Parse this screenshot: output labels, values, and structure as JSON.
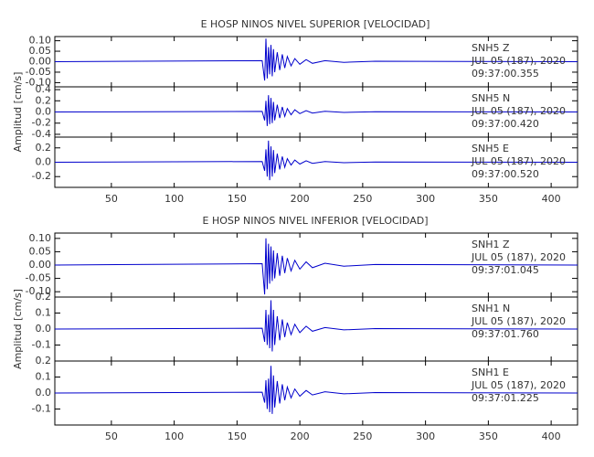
{
  "chart_data": [
    {
      "type": "line",
      "title": "E HOSP NINOS NIVEL SUPERIOR [VELOCIDAD]",
      "ylabel": "Amplitud [cm/s]",
      "color": "#0000cc",
      "xlim": [
        5,
        421
      ],
      "xticks": [
        50,
        100,
        150,
        200,
        250,
        300,
        350,
        400
      ],
      "x": [
        5,
        170,
        172,
        173,
        174,
        175,
        176,
        177,
        178,
        179,
        180,
        182,
        184,
        186,
        188,
        190,
        193,
        196,
        200,
        205,
        210,
        220,
        235,
        260,
        421
      ],
      "panels": [
        {
          "name": "SNH5   Z",
          "date": "JUL 05 (187), 2020",
          "time": "09:37:00.355",
          "ylim": [
            -0.12,
            0.12
          ],
          "yticks": [
            {
              "value": 0.1,
              "label": "0.10"
            },
            0.05,
            {
              "value": 0,
              "label": "0.00"
            },
            -0.05,
            {
              "value": -0.1,
              "label": "-0.10"
            }
          ],
          "values": [
            0,
            0.005,
            -0.09,
            0.11,
            -0.08,
            0.07,
            -0.06,
            0.08,
            -0.07,
            0.06,
            -0.05,
            0.045,
            -0.04,
            0.035,
            -0.03,
            0.025,
            -0.02,
            0.015,
            -0.012,
            0.01,
            -0.008,
            0.005,
            -0.003,
            0.002,
            0
          ]
        },
        {
          "name": "SNH5   N",
          "date": "JUL 05 (187), 2020",
          "time": "09:37:00.420",
          "ylim": [
            -0.45,
            0.45
          ],
          "yticks": [
            0.4,
            0.2,
            {
              "value": 0,
              "label": "0.0"
            },
            -0.2,
            -0.4
          ],
          "values": [
            0,
            0.01,
            -0.15,
            0.2,
            -0.25,
            0.3,
            -0.22,
            0.25,
            -0.2,
            0.18,
            -0.15,
            0.13,
            -0.11,
            0.09,
            -0.08,
            0.06,
            -0.05,
            0.04,
            -0.03,
            0.025,
            -0.02,
            0.012,
            -0.008,
            0.005,
            0
          ]
        },
        {
          "name": "SNH5   E",
          "date": "JUL 05 (187), 2020",
          "time": "09:37:00.520",
          "ylim": [
            -0.35,
            0.35
          ],
          "yticks": [
            0.2,
            {
              "value": 0,
              "label": "0.0"
            },
            -0.2
          ],
          "values": [
            0,
            0.01,
            -0.12,
            0.18,
            -0.2,
            0.3,
            -0.25,
            0.22,
            -0.2,
            0.17,
            -0.15,
            0.12,
            -0.1,
            0.08,
            -0.07,
            0.05,
            -0.04,
            0.03,
            -0.025,
            0.02,
            -0.015,
            0.01,
            -0.006,
            0.004,
            0
          ]
        }
      ]
    },
    {
      "type": "line",
      "title": "E HOSP NINOS NIVEL INFERIOR [VELOCIDAD]",
      "ylabel": "Amplitud [cm/s]",
      "color": "#0000cc",
      "xlim": [
        5,
        421
      ],
      "xticks": [
        50,
        100,
        150,
        200,
        250,
        300,
        350,
        400
      ],
      "x": [
        5,
        170,
        172,
        173,
        174,
        175,
        176,
        177,
        178,
        179,
        180,
        182,
        184,
        186,
        188,
        190,
        193,
        196,
        200,
        205,
        210,
        220,
        235,
        260,
        421
      ],
      "panels": [
        {
          "name": "SNH1   Z",
          "date": "JUL 05 (187), 2020",
          "time": "09:37:01.045",
          "ylim": [
            -0.12,
            0.12
          ],
          "yticks": [
            {
              "value": 0.1,
              "label": "0.10"
            },
            0.05,
            {
              "value": 0,
              "label": "0.00"
            },
            -0.05,
            {
              "value": -0.1,
              "label": "-0.10"
            }
          ],
          "values": [
            0,
            0.005,
            -0.11,
            0.1,
            -0.09,
            0.08,
            -0.07,
            0.07,
            -0.06,
            0.055,
            -0.05,
            0.045,
            -0.04,
            0.035,
            -0.03,
            0.026,
            -0.022,
            0.018,
            -0.015,
            0.012,
            -0.01,
            0.007,
            -0.004,
            0.002,
            0
          ]
        },
        {
          "name": "SNH1   N",
          "date": "JUL 05 (187), 2020",
          "time": "09:37:01.760",
          "ylim": [
            -0.2,
            0.2
          ],
          "yticks": [
            0.2,
            0.1,
            {
              "value": 0,
              "label": "0.0"
            },
            -0.1
          ],
          "values": [
            0,
            0.005,
            -0.08,
            0.12,
            -0.1,
            0.09,
            -0.12,
            0.18,
            -0.14,
            0.12,
            -0.1,
            0.08,
            -0.07,
            0.06,
            -0.05,
            0.04,
            -0.035,
            0.03,
            -0.022,
            0.018,
            -0.014,
            0.009,
            -0.005,
            0.003,
            0
          ]
        },
        {
          "name": "SNH1   E",
          "date": "JUL 05 (187), 2020",
          "time": "09:37:01.225",
          "ylim": [
            -0.2,
            0.2
          ],
          "yticks": [
            0.2,
            0.1,
            {
              "value": 0,
              "label": "0.0"
            },
            -0.1
          ],
          "values": [
            0,
            0.005,
            -0.06,
            0.08,
            -0.1,
            0.09,
            -0.12,
            0.17,
            -0.13,
            0.11,
            -0.09,
            0.075,
            -0.065,
            0.055,
            -0.045,
            0.038,
            -0.03,
            0.025,
            -0.02,
            0.016,
            -0.012,
            0.008,
            -0.005,
            0.003,
            0
          ]
        }
      ]
    }
  ]
}
